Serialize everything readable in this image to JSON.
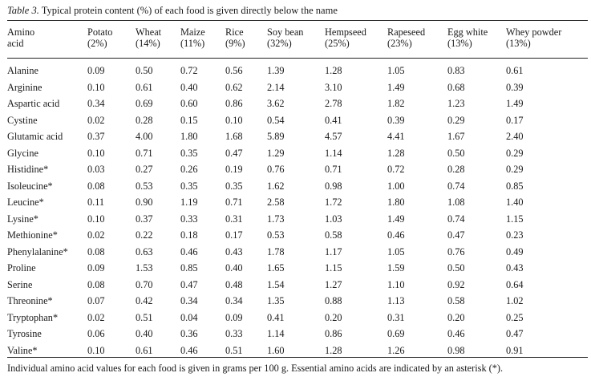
{
  "caption": {
    "label": "Table 3.",
    "text": " Typical protein content (%) of each food is given directly below the name"
  },
  "header": {
    "first_col": [
      "Amino",
      "acid"
    ],
    "foods": [
      {
        "name": "Potato",
        "protein": "(2%)"
      },
      {
        "name": "Wheat",
        "protein": "(14%)"
      },
      {
        "name": "Maize",
        "protein": "(11%)"
      },
      {
        "name": "Rice",
        "protein": "(9%)"
      },
      {
        "name": "Soy bean",
        "protein": "(32%)"
      },
      {
        "name": "Hempseed",
        "protein": "(25%)"
      },
      {
        "name": "Rapeseed",
        "protein": "(23%)"
      },
      {
        "name": "Egg white",
        "protein": "(13%)"
      },
      {
        "name": "Whey powder",
        "protein": "(13%)"
      }
    ]
  },
  "rows": [
    {
      "name": "Alanine",
      "values": [
        "0.09",
        "0.50",
        "0.72",
        "0.56",
        "1.39",
        "1.28",
        "1.05",
        "0.83",
        "0.61"
      ]
    },
    {
      "name": "Arginine",
      "values": [
        "0.10",
        "0.61",
        "0.40",
        "0.62",
        "2.14",
        "3.10",
        "1.49",
        "0.68",
        "0.39"
      ]
    },
    {
      "name": "Aspartic acid",
      "values": [
        "0.34",
        "0.69",
        "0.60",
        "0.86",
        "3.62",
        "2.78",
        "1.82",
        "1.23",
        "1.49"
      ]
    },
    {
      "name": "Cystine",
      "values": [
        "0.02",
        "0.28",
        "0.15",
        "0.10",
        "0.54",
        "0.41",
        "0.39",
        "0.29",
        "0.17"
      ]
    },
    {
      "name": "Glutamic acid",
      "values": [
        "0.37",
        "4.00",
        "1.80",
        "1.68",
        "5.89",
        "4.57",
        "4.41",
        "1.67",
        "2.40"
      ]
    },
    {
      "name": "Glycine",
      "values": [
        "0.10",
        "0.71",
        "0.35",
        "0.47",
        "1.29",
        "1.14",
        "1.28",
        "0.50",
        "0.29"
      ]
    },
    {
      "name": "Histidine*",
      "values": [
        "0.03",
        "0.27",
        "0.26",
        "0.19",
        "0.76",
        "0.71",
        "0.72",
        "0.28",
        "0.29"
      ]
    },
    {
      "name": "Isoleucine*",
      "values": [
        "0.08",
        "0.53",
        "0.35",
        "0.35",
        "1.62",
        "0.98",
        "1.00",
        "0.74",
        "0.85"
      ]
    },
    {
      "name": "Leucine*",
      "values": [
        "0.11",
        "0.90",
        "1.19",
        "0.71",
        "2.58",
        "1.72",
        "1.80",
        "1.08",
        "1.40"
      ]
    },
    {
      "name": "Lysine*",
      "values": [
        "0.10",
        "0.37",
        "0.33",
        "0.31",
        "1.73",
        "1.03",
        "1.49",
        "0.74",
        "1.15"
      ]
    },
    {
      "name": "Methionine*",
      "values": [
        "0.02",
        "0.22",
        "0.18",
        "0.17",
        "0.53",
        "0.58",
        "0.46",
        "0.47",
        "0.23"
      ]
    },
    {
      "name": "Phenylalanine*",
      "values": [
        "0.08",
        "0.63",
        "0.46",
        "0.43",
        "1.78",
        "1.17",
        "1.05",
        "0.76",
        "0.49"
      ]
    },
    {
      "name": "Proline",
      "values": [
        "0.09",
        "1.53",
        "0.85",
        "0.40",
        "1.65",
        "1.15",
        "1.59",
        "0.50",
        "0.43"
      ]
    },
    {
      "name": "Serine",
      "values": [
        "0.08",
        "0.70",
        "0.47",
        "0.48",
        "1.54",
        "1.27",
        "1.10",
        "0.92",
        "0.64"
      ]
    },
    {
      "name": "Threonine*",
      "values": [
        "0.07",
        "0.42",
        "0.34",
        "0.34",
        "1.35",
        "0.88",
        "1.13",
        "0.58",
        "1.02"
      ]
    },
    {
      "name": "Tryptophan*",
      "values": [
        "0.02",
        "0.51",
        "0.04",
        "0.09",
        "0.41",
        "0.20",
        "0.31",
        "0.20",
        "0.25"
      ]
    },
    {
      "name": "Tyrosine",
      "values": [
        "0.06",
        "0.40",
        "0.36",
        "0.33",
        "1.14",
        "0.86",
        "0.69",
        "0.46",
        "0.47"
      ]
    },
    {
      "name": "Valine*",
      "values": [
        "0.10",
        "0.61",
        "0.46",
        "0.51",
        "1.60",
        "1.28",
        "1.26",
        "0.98",
        "0.91"
      ]
    }
  ],
  "footnote": "Individual amino acid values for each food is given in grams per 100 g. Essential amino acids are indicated by an asterisk (*)."
}
